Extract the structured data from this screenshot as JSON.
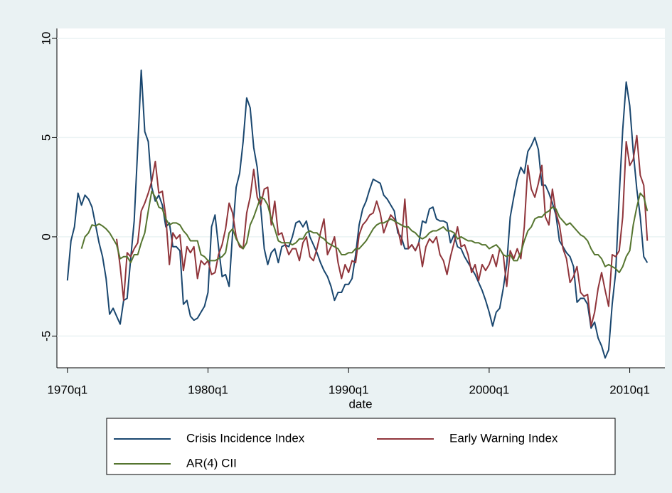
{
  "chart_data": {
    "type": "line",
    "xlabel": "date",
    "x": [
      1970,
      1970.25,
      1970.5,
      1970.75,
      1971,
      1971.25,
      1971.5,
      1971.75,
      1972,
      1972.25,
      1972.5,
      1972.75,
      1973,
      1973.25,
      1973.5,
      1973.75,
      1974,
      1974.25,
      1974.5,
      1974.75,
      1975,
      1975.25,
      1975.5,
      1975.75,
      1976,
      1976.25,
      1976.5,
      1976.75,
      1977,
      1977.25,
      1977.5,
      1977.75,
      1978,
      1978.25,
      1978.5,
      1978.75,
      1979,
      1979.25,
      1979.5,
      1979.75,
      1980,
      1980.25,
      1980.5,
      1980.75,
      1981,
      1981.25,
      1981.5,
      1981.75,
      1982,
      1982.25,
      1982.5,
      1982.75,
      1983,
      1983.25,
      1983.5,
      1983.75,
      1984,
      1984.25,
      1984.5,
      1984.75,
      1985,
      1985.25,
      1985.5,
      1985.75,
      1986,
      1986.25,
      1986.5,
      1986.75,
      1987,
      1987.25,
      1987.5,
      1987.75,
      1988,
      1988.25,
      1988.5,
      1988.75,
      1989,
      1989.25,
      1989.5,
      1989.75,
      1990,
      1990.25,
      1990.5,
      1990.75,
      1991,
      1991.25,
      1991.5,
      1991.75,
      1992,
      1992.25,
      1992.5,
      1992.75,
      1993,
      1993.25,
      1993.5,
      1993.75,
      1994,
      1994.25,
      1994.5,
      1994.75,
      1995,
      1995.25,
      1995.5,
      1995.75,
      1996,
      1996.25,
      1996.5,
      1996.75,
      1997,
      1997.25,
      1997.5,
      1997.75,
      1998,
      1998.25,
      1998.5,
      1998.75,
      1999,
      1999.25,
      1999.5,
      1999.75,
      2000,
      2000.25,
      2000.5,
      2000.75,
      2001,
      2001.25,
      2001.5,
      2001.75,
      2002,
      2002.25,
      2002.5,
      2002.75,
      2003,
      2003.25,
      2003.5,
      2003.75,
      2004,
      2004.25,
      2004.5,
      2004.75,
      2005,
      2005.25,
      2005.5,
      2005.75,
      2006,
      2006.25,
      2006.5,
      2006.75,
      2007,
      2007.25,
      2007.5,
      2007.75,
      2008,
      2008.25,
      2008.5,
      2008.75,
      2009,
      2009.25,
      2009.5,
      2009.75,
      2010,
      2010.25,
      2010.5,
      2010.75,
      2011,
      2011.25
    ],
    "series": [
      {
        "name": "Crisis Incidence Index",
        "color": "#1a476f",
        "values": [
          -2.2,
          -0.2,
          0.5,
          2.2,
          1.6,
          2.1,
          1.9,
          1.5,
          0.6,
          -0.3,
          -1.0,
          -2.1,
          -3.9,
          -3.6,
          -4.0,
          -4.4,
          -3.2,
          -3.1,
          -1.1,
          0.8,
          4.5,
          8.4,
          5.3,
          4.8,
          2.5,
          1.8,
          2.1,
          1.6,
          0.5,
          0.7,
          -0.5,
          -0.5,
          -0.7,
          -3.4,
          -3.2,
          -4.0,
          -4.2,
          -4.1,
          -3.8,
          -3.5,
          -2.8,
          0.5,
          1.1,
          -0.5,
          -2.0,
          -1.9,
          -2.5,
          0.2,
          2.5,
          3.2,
          4.8,
          7.0,
          6.5,
          4.5,
          3.5,
          1.5,
          -0.6,
          -1.4,
          -0.8,
          -0.6,
          -1.3,
          -0.5,
          -0.4,
          -0.5,
          0.0,
          0.7,
          0.8,
          0.5,
          0.8,
          0.0,
          -0.4,
          -0.8,
          -1.3,
          -1.7,
          -2.0,
          -2.5,
          -3.2,
          -2.8,
          -2.8,
          -2.4,
          -2.4,
          -2.1,
          -0.9,
          0.6,
          1.4,
          1.8,
          2.4,
          2.9,
          2.8,
          2.7,
          2.1,
          1.9,
          1.6,
          1.3,
          0.2,
          0.0,
          -0.6,
          -0.6,
          -0.4,
          -0.7,
          -0.3,
          0.8,
          0.7,
          1.4,
          1.5,
          0.9,
          0.8,
          0.8,
          0.7,
          -0.3,
          0.1,
          -0.5,
          -0.6,
          -1.0,
          -1.3,
          -1.6,
          -1.9,
          -2.3,
          -2.7,
          -3.2,
          -3.8,
          -4.5,
          -3.8,
          -3.6,
          -2.6,
          -1.4,
          1.0,
          2.0,
          2.9,
          3.5,
          3.2,
          4.3,
          4.6,
          5.0,
          4.4,
          2.6,
          2.6,
          2.2,
          1.7,
          1.1,
          -0.2,
          -0.5,
          -0.8,
          -1.0,
          -1.5,
          -3.3,
          -3.1,
          -3.1,
          -3.4,
          -4.6,
          -4.3,
          -5.1,
          -5.5,
          -6.1,
          -5.7,
          -3.4,
          -1.8,
          2.1,
          5.4,
          7.8,
          6.6,
          4.3,
          2.4,
          1.0,
          -1.0,
          -1.3
        ]
      },
      {
        "name": "Early Warning Index",
        "color": "#90353b",
        "values": [
          null,
          null,
          null,
          null,
          null,
          null,
          null,
          null,
          null,
          null,
          null,
          null,
          null,
          null,
          -0.1,
          -1.5,
          -3.2,
          -0.8,
          -1.0,
          -0.6,
          -0.3,
          1.3,
          1.7,
          2.2,
          2.8,
          3.8,
          2.2,
          2.3,
          1.0,
          -1.4,
          0.2,
          -0.1,
          0.1,
          -1.7,
          -0.5,
          -0.8,
          -0.5,
          -2.1,
          -1.2,
          -1.4,
          -1.2,
          -1.9,
          -1.8,
          -0.9,
          -0.4,
          0.4,
          1.7,
          1.2,
          0.0,
          -0.5,
          -0.6,
          1.2,
          2.0,
          3.4,
          2.0,
          1.6,
          2.4,
          2.5,
          0.6,
          1.8,
          0.1,
          0.2,
          -0.4,
          -0.9,
          -0.6,
          -0.6,
          -1.2,
          -0.3,
          0.0,
          -1.0,
          -1.2,
          -0.6,
          0.2,
          0.9,
          -0.9,
          -0.5,
          0.0,
          -1.3,
          -2.1,
          -1.4,
          -1.8,
          -1.2,
          -1.3,
          0.1,
          0.6,
          0.8,
          1.1,
          1.2,
          1.8,
          1.2,
          0.2,
          0.7,
          1.1,
          0.9,
          0.4,
          -0.4,
          1.9,
          -0.6,
          -0.4,
          -0.7,
          -0.3,
          -1.5,
          -0.5,
          -0.1,
          -0.3,
          0.0,
          -0.9,
          -1.2,
          -1.9,
          -1.0,
          -0.3,
          0.5,
          -0.5,
          -0.4,
          -0.9,
          -1.8,
          -1.4,
          -2.2,
          -1.4,
          -1.7,
          -1.4,
          -0.9,
          -1.5,
          -0.6,
          -0.9,
          -2.5,
          -0.7,
          -1.1,
          -0.6,
          -1.1,
          0.5,
          3.6,
          2.4,
          2.0,
          2.7,
          3.6,
          1.0,
          0.6,
          2.4,
          1.2,
          0.6,
          -0.6,
          -1.1,
          -2.3,
          -2.0,
          -1.5,
          -2.8,
          -3.0,
          -2.9,
          -4.5,
          -3.8,
          -2.6,
          -1.8,
          -2.7,
          -3.5,
          -0.9,
          -1.0,
          -0.7,
          1.0,
          4.8,
          3.6,
          3.9,
          5.1,
          3.1,
          2.6,
          -0.2
        ]
      },
      {
        "name": "AR(4) CII",
        "color": "#55752f",
        "values": [
          null,
          null,
          null,
          null,
          -0.6,
          0.0,
          0.2,
          0.6,
          0.55,
          0.65,
          0.55,
          0.4,
          0.2,
          -0.1,
          -0.4,
          -1.1,
          -1.0,
          -1.0,
          -1.3,
          -0.9,
          -0.9,
          -0.3,
          0.2,
          1.3,
          2.3,
          2.0,
          1.5,
          1.4,
          0.9,
          0.6,
          0.7,
          0.7,
          0.6,
          0.3,
          0.1,
          -0.2,
          -0.2,
          -0.2,
          -0.9,
          -1.0,
          -1.2,
          -1.2,
          -1.2,
          -1.1,
          -1.0,
          -0.8,
          0.2,
          0.4,
          -0.1,
          -0.4,
          -0.6,
          -0.3,
          0.6,
          1.0,
          1.5,
          2.0,
          1.9,
          1.6,
          0.9,
          0.4,
          -0.2,
          -0.3,
          -0.3,
          -0.3,
          -0.4,
          -0.3,
          -0.1,
          -0.1,
          0.2,
          0.3,
          0.2,
          0.2,
          0.0,
          -0.1,
          -0.3,
          -0.4,
          -0.5,
          -0.6,
          -0.9,
          -0.9,
          -0.8,
          -0.8,
          -0.6,
          -0.6,
          -0.4,
          -0.2,
          0.1,
          0.4,
          0.6,
          0.7,
          0.7,
          0.8,
          0.9,
          0.8,
          0.7,
          0.6,
          0.5,
          0.5,
          0.3,
          0.2,
          0.0,
          -0.1,
          0.0,
          0.2,
          0.3,
          0.3,
          0.4,
          0.5,
          0.3,
          0.3,
          0.2,
          -0.1,
          0.0,
          -0.1,
          -0.2,
          -0.2,
          -0.3,
          -0.3,
          -0.4,
          -0.4,
          -0.6,
          -0.5,
          -0.4,
          -0.6,
          -0.9,
          -1.0,
          -0.9,
          -1.2,
          -1.2,
          -0.8,
          -0.2,
          0.3,
          0.5,
          0.9,
          1.0,
          1.0,
          1.2,
          1.3,
          1.5,
          1.4,
          1.0,
          0.8,
          0.6,
          0.7,
          0.5,
          0.3,
          0.1,
          0.0,
          -0.2,
          -0.6,
          -0.9,
          -0.9,
          -1.1,
          -1.5,
          -1.4,
          -1.5,
          -1.6,
          -1.8,
          -1.5,
          -1.0,
          -0.7,
          0.6,
          1.5,
          2.2,
          2.0,
          1.3
        ]
      }
    ],
    "xlim": [
      1969.25,
      2012.5
    ],
    "xticks": [
      {
        "value": 1970,
        "label": "1970q1"
      },
      {
        "value": 1980,
        "label": "1980q1"
      },
      {
        "value": 1990,
        "label": "1990q1"
      },
      {
        "value": 2000,
        "label": "2000q1"
      },
      {
        "value": 2010,
        "label": "2010q1"
      }
    ],
    "ylim": [
      -6.6,
      10.5
    ],
    "yticks": [
      -5,
      0,
      5,
      10
    ],
    "grid": true
  }
}
